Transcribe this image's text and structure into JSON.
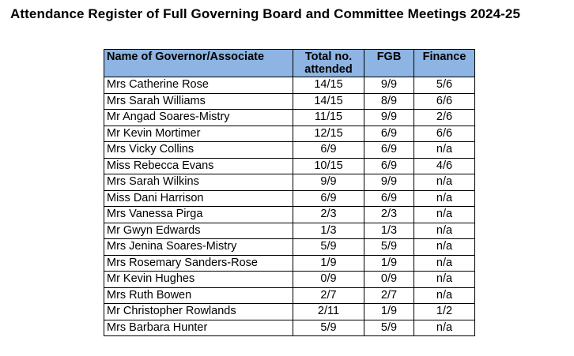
{
  "title": "Attendance Register of Full Governing Board and Committee Meetings 2024-25",
  "table": {
    "header_bg": "#8DB4E2",
    "columns": [
      "Name of Governor/Associate",
      "Total no. attended",
      "FGB",
      "Finance"
    ],
    "rows": [
      [
        "Mrs Catherine Rose",
        "14/15",
        "9/9",
        "5/6"
      ],
      [
        "Mrs Sarah Williams",
        "14/15",
        "8/9",
        "6/6"
      ],
      [
        "Mr Angad Soares-Mistry",
        "11/15",
        "9/9",
        "2/6"
      ],
      [
        "Mr Kevin Mortimer",
        "12/15",
        "6/9",
        "6/6"
      ],
      [
        "Mrs Vicky Collins",
        "6/9",
        "6/9",
        "n/a"
      ],
      [
        "Miss Rebecca Evans",
        "10/15",
        "6/9",
        "4/6"
      ],
      [
        "Mrs Sarah Wilkins",
        "9/9",
        "9/9",
        "n/a"
      ],
      [
        "Miss Dani Harrison",
        "6/9",
        "6/9",
        "n/a"
      ],
      [
        "Mrs Vanessa Pirga",
        "2/3",
        "2/3",
        "n/a"
      ],
      [
        "Mr Gwyn Edwards",
        "1/3",
        "1/3",
        "n/a"
      ],
      [
        "Mrs Jenina Soares-Mistry",
        "5/9",
        "5/9",
        "n/a"
      ],
      [
        "Mrs Rosemary Sanders-Rose",
        "1/9",
        "1/9",
        "n/a"
      ],
      [
        "Mr Kevin Hughes",
        "0/9",
        "0/9",
        "n/a"
      ],
      [
        "Mrs Ruth Bowen",
        "2/7",
        "2/7",
        "n/a"
      ],
      [
        "Mr Christopher Rowlands",
        "2/11",
        "1/9",
        "1/2"
      ],
      [
        "Mrs Barbara Hunter",
        "5/9",
        "5/9",
        "n/a"
      ]
    ]
  }
}
